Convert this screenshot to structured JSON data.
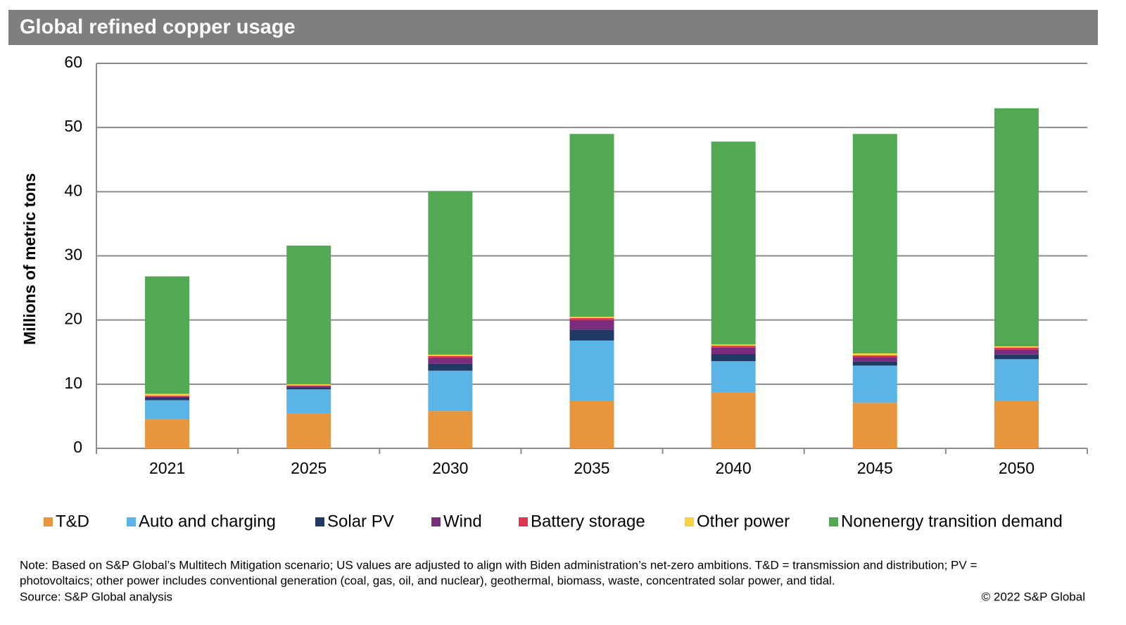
{
  "chart_data": {
    "type": "stacked_bar",
    "title": "Global refined copper usage",
    "y_label": "Millions of metric tons",
    "categories": [
      "2021",
      "2025",
      "2030",
      "2035",
      "2040",
      "2045",
      "2050"
    ],
    "series": [
      {
        "name": "T&D",
        "color": "#e8963e",
        "values": [
          4.6,
          5.4,
          5.8,
          7.4,
          8.7,
          7.1,
          7.4
        ]
      },
      {
        "name": "Auto and charging",
        "color": "#5ab4e5",
        "values": [
          2.9,
          3.8,
          6.3,
          9.4,
          4.9,
          5.8,
          6.5
        ]
      },
      {
        "name": "Solar PV",
        "color": "#1f3864",
        "values": [
          0.4,
          0.3,
          1.1,
          1.7,
          1.1,
          0.6,
          0.7
        ]
      },
      {
        "name": "Wind",
        "color": "#7b2c7f",
        "values": [
          0.2,
          0.2,
          0.9,
          1.5,
          1.0,
          0.7,
          0.8
        ]
      },
      {
        "name": "Battery storage",
        "color": "#e0344f",
        "values": [
          0.1,
          0.1,
          0.3,
          0.3,
          0.3,
          0.3,
          0.3
        ]
      },
      {
        "name": "Other power",
        "color": "#f5d33a",
        "values": [
          0.3,
          0.2,
          0.2,
          0.2,
          0.2,
          0.3,
          0.2
        ]
      },
      {
        "name": "Nonenergy transition demand",
        "color": "#52a853",
        "values": [
          18.3,
          21.6,
          25.5,
          28.5,
          31.6,
          34.2,
          37.1
        ]
      }
    ],
    "ylim": [
      0,
      60
    ],
    "yticks": [
      0,
      10,
      20,
      30,
      40,
      50,
      60
    ],
    "grid": true,
    "notes": [
      "Note: Based on S&P Global’s Multitech Mitigation scenario; US values are adjusted to align with Biden administration’s net-zero ambitions. T&D = transmission and distribution; PV =",
      "photovoltaics; other power includes conventional generation (coal, gas, oil, and nuclear), geothermal, biomass, waste, concentrated solar power, and tidal.",
      "Source: S&P Global analysis"
    ],
    "copyright": "© 2022 S&P Global"
  }
}
